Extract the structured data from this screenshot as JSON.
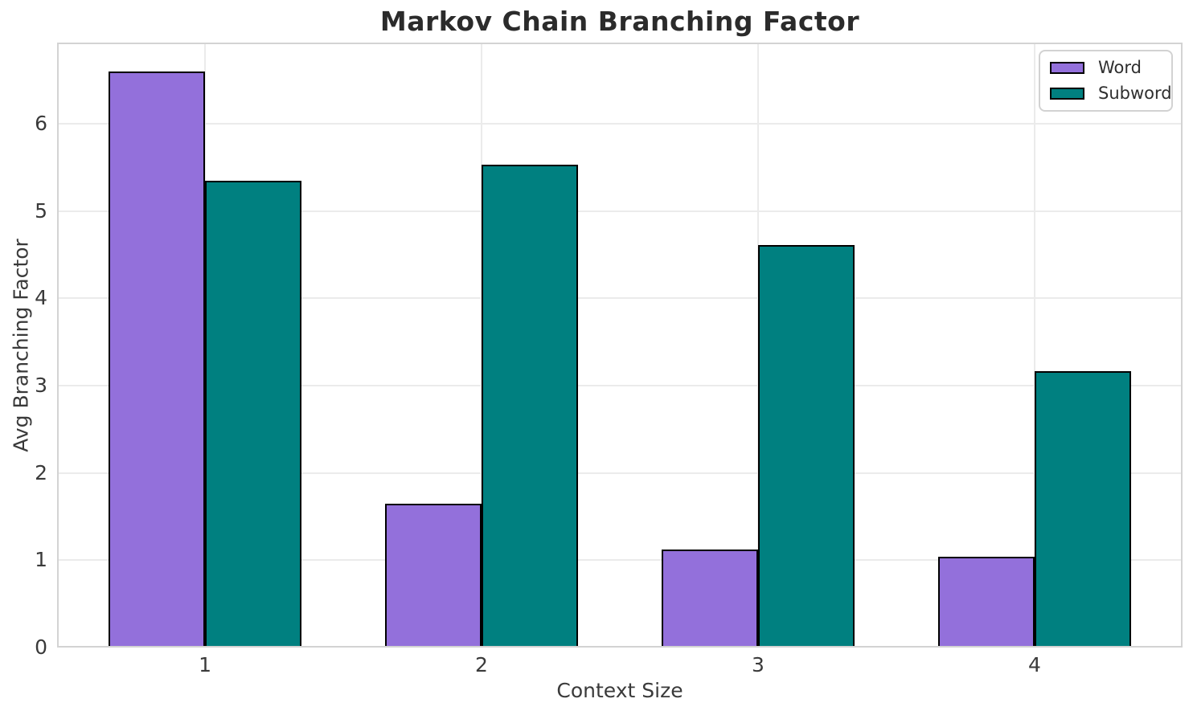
{
  "chart_data": {
    "type": "bar",
    "title": "Markov Chain Branching Factor",
    "xlabel": "Context Size",
    "ylabel": "Avg Branching Factor",
    "categories": [
      "1",
      "2",
      "3",
      "4"
    ],
    "series": [
      {
        "name": "Word",
        "color": "#9370DB",
        "values": [
          6.6,
          1.65,
          1.12,
          1.04
        ]
      },
      {
        "name": "Subword",
        "color": "#008080",
        "values": [
          5.35,
          5.53,
          4.61,
          3.17
        ]
      }
    ],
    "bar_width": 0.35,
    "edge_color": "#000000",
    "ylim": [
      0,
      6.93
    ],
    "xlim": [
      0.465,
      4.535
    ],
    "y_ticks": [
      0,
      1,
      2,
      3,
      4,
      5,
      6
    ],
    "grid": true,
    "legend_position": "upper right"
  },
  "style": {
    "background": "#ffffff",
    "grid_color": "#ebebeb",
    "spine_color": "#d3d3d3",
    "title_color": "#2b2b2b",
    "tick_color": "#3a3a3a"
  }
}
